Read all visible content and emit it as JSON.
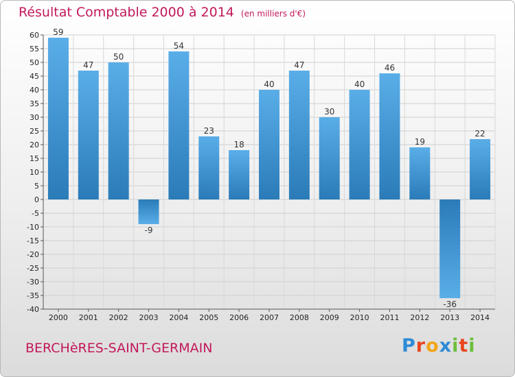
{
  "title": "Résultat Comptable 2000 à 2014",
  "subtitle": "(en milliers d'€)",
  "commune": "BERCHèRES-SAINT-GERMAIN",
  "logo": {
    "letters": [
      "P",
      "r",
      "o",
      "x",
      "i",
      "t",
      "i"
    ],
    "colors": [
      "#2e8bd6",
      "#e8451e",
      "#f2a516",
      "#2e8bd6",
      "#6cbf3b",
      "#e8451e",
      "#6cbf3b"
    ]
  },
  "chart_data": {
    "type": "bar",
    "categories": [
      "2000",
      "2001",
      "2002",
      "2003",
      "2004",
      "2005",
      "2006",
      "2007",
      "2008",
      "2009",
      "2010",
      "2011",
      "2012",
      "2013",
      "2014"
    ],
    "values": [
      59,
      47,
      50,
      -9,
      54,
      23,
      18,
      40,
      47,
      30,
      40,
      46,
      19,
      -36,
      22
    ],
    "ylim": [
      -40,
      60
    ],
    "ytick_step": 5,
    "grid": true,
    "bar_color_light": "#5aaee8",
    "bar_color_dark": "#2a7bb8"
  }
}
